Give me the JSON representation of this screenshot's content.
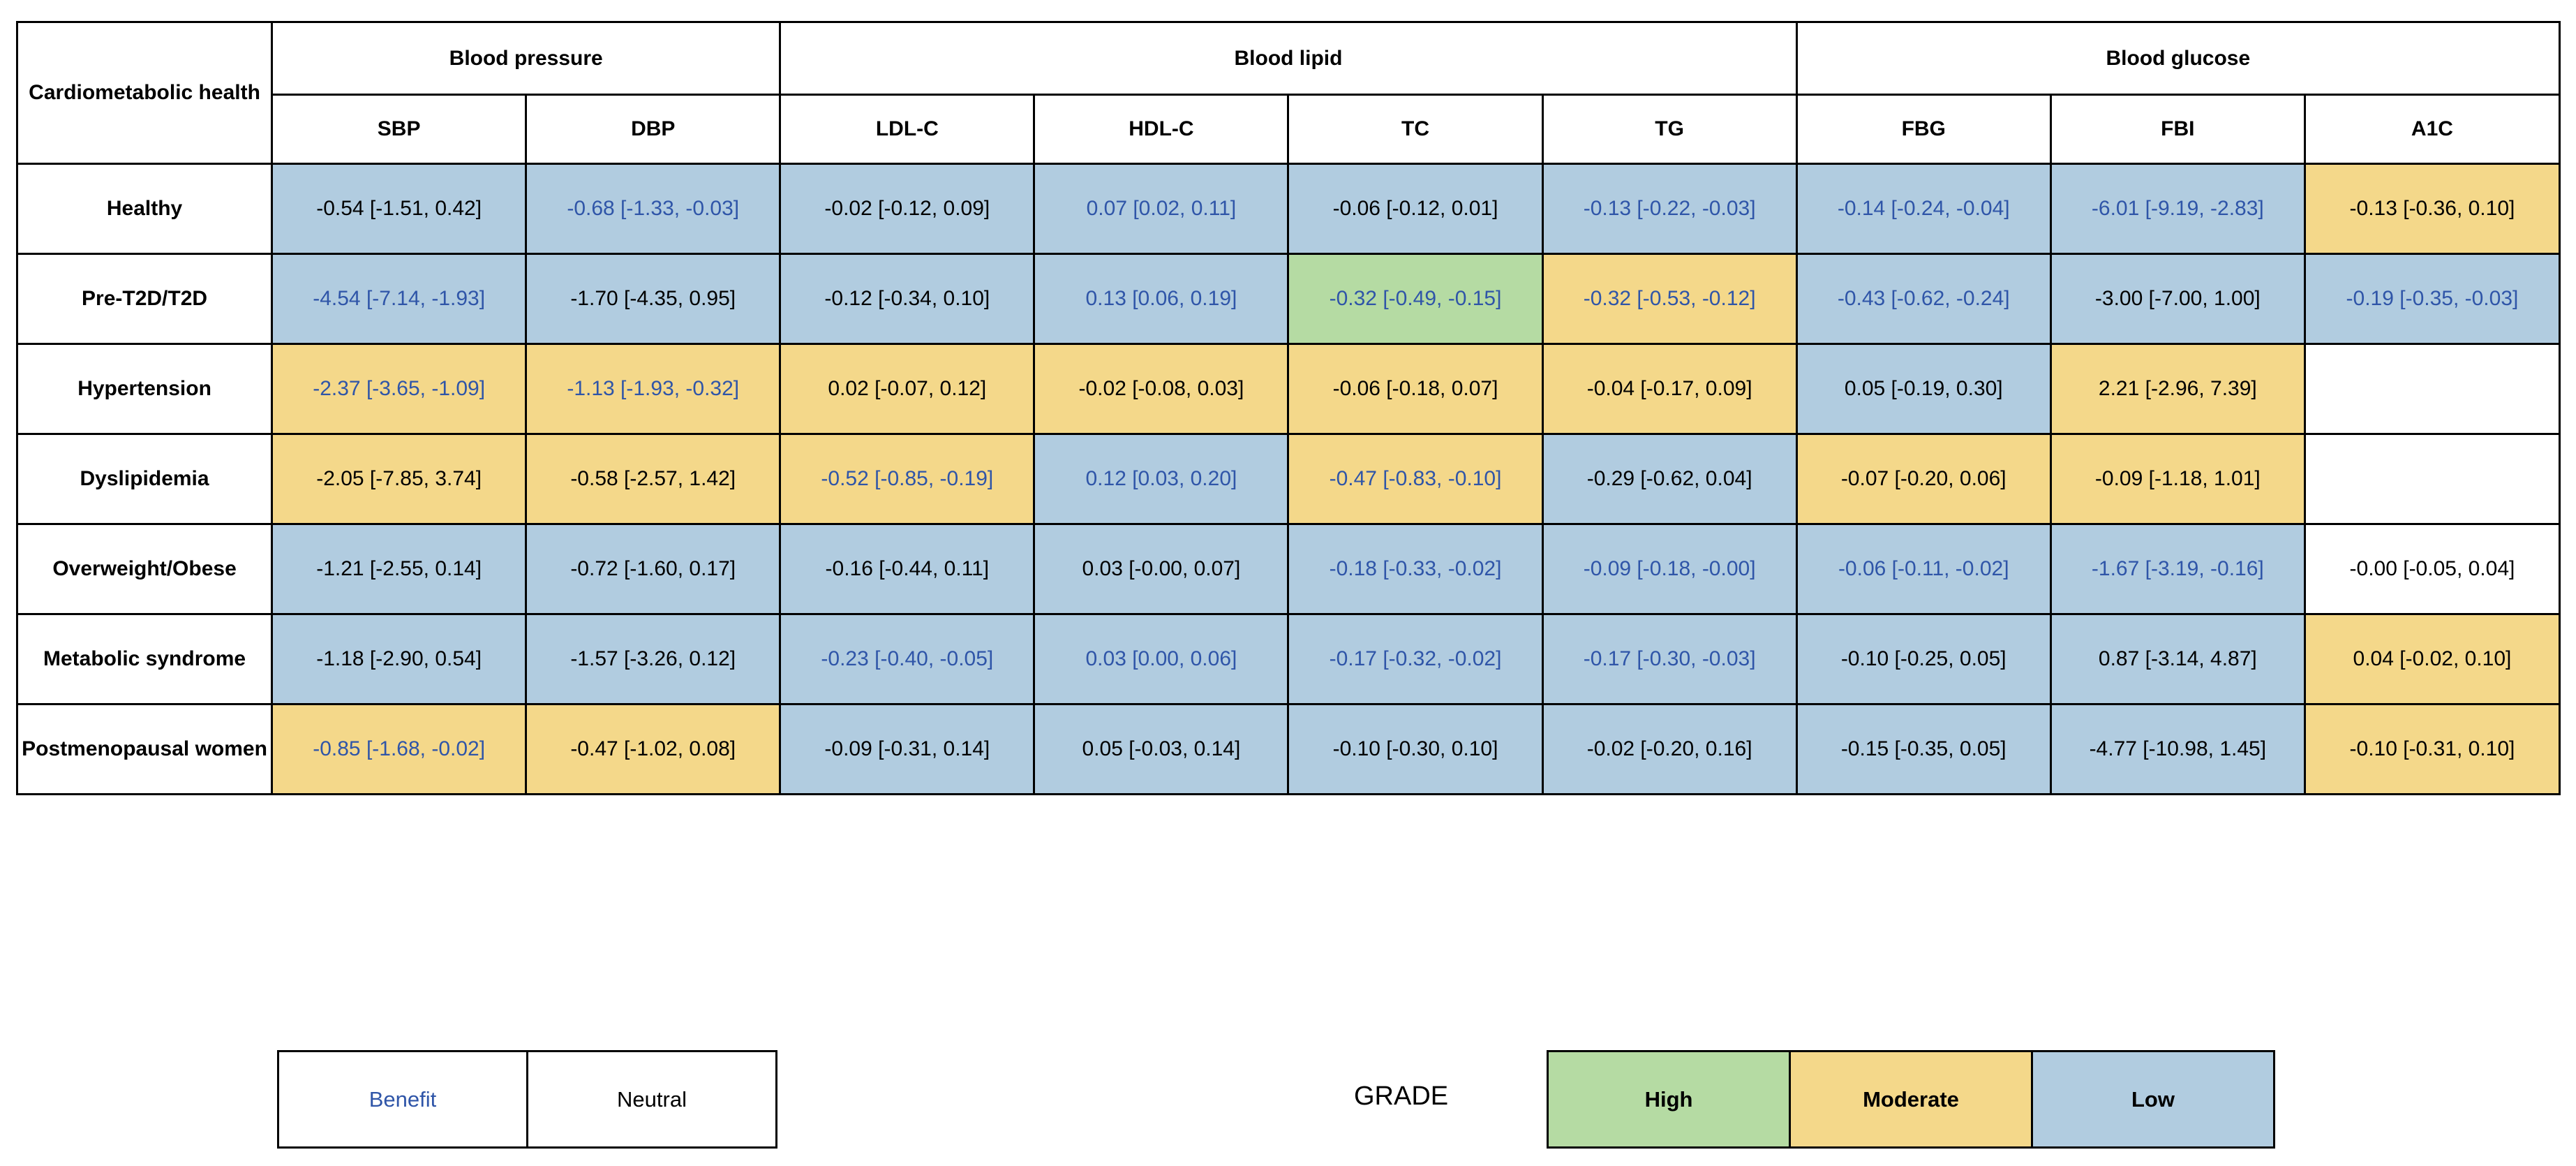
{
  "table": {
    "corner_label": "Cardiometabolic health",
    "groups": [
      {
        "label": "Blood pressure",
        "span": 2
      },
      {
        "label": "Blood lipid",
        "span": 4
      },
      {
        "label": "Blood glucose",
        "span": 3
      }
    ],
    "columns": [
      "SBP",
      "DBP",
      "LDL-C",
      "HDL-C",
      "TC",
      "TG",
      "FBG",
      "FBI",
      "A1C"
    ],
    "rows": [
      {
        "label": "Healthy",
        "cells": [
          {
            "text": "-0.54 [-1.51, 0.42]",
            "grade": "low",
            "effect": "neutral"
          },
          {
            "text": "-0.68 [-1.33, -0.03]",
            "grade": "low",
            "effect": "benefit"
          },
          {
            "text": "-0.02 [-0.12, 0.09]",
            "grade": "low",
            "effect": "neutral"
          },
          {
            "text": "0.07 [0.02, 0.11]",
            "grade": "low",
            "effect": "benefit"
          },
          {
            "text": "-0.06 [-0.12, 0.01]",
            "grade": "low",
            "effect": "neutral"
          },
          {
            "text": "-0.13 [-0.22, -0.03]",
            "grade": "low",
            "effect": "benefit"
          },
          {
            "text": "-0.14 [-0.24, -0.04]",
            "grade": "low",
            "effect": "benefit"
          },
          {
            "text": "-6.01 [-9.19, -2.83]",
            "grade": "low",
            "effect": "benefit"
          },
          {
            "text": "-0.13 [-0.36, 0.10]",
            "grade": "moderate",
            "effect": "neutral"
          }
        ]
      },
      {
        "label": "Pre-T2D/T2D",
        "cells": [
          {
            "text": "-4.54 [-7.14, -1.93]",
            "grade": "low",
            "effect": "benefit"
          },
          {
            "text": "-1.70 [-4.35, 0.95]",
            "grade": "low",
            "effect": "neutral"
          },
          {
            "text": "-0.12 [-0.34, 0.10]",
            "grade": "low",
            "effect": "neutral"
          },
          {
            "text": "0.13 [0.06, 0.19]",
            "grade": "low",
            "effect": "benefit"
          },
          {
            "text": "-0.32 [-0.49, -0.15]",
            "grade": "high",
            "effect": "benefit"
          },
          {
            "text": "-0.32 [-0.53, -0.12]",
            "grade": "moderate",
            "effect": "benefit"
          },
          {
            "text": "-0.43 [-0.62, -0.24]",
            "grade": "low",
            "effect": "benefit"
          },
          {
            "text": "-3.00 [-7.00, 1.00]",
            "grade": "low",
            "effect": "neutral"
          },
          {
            "text": "-0.19 [-0.35, -0.03]",
            "grade": "low",
            "effect": "benefit"
          }
        ]
      },
      {
        "label": "Hypertension",
        "cells": [
          {
            "text": "-2.37 [-3.65, -1.09]",
            "grade": "moderate",
            "effect": "benefit"
          },
          {
            "text": "-1.13 [-1.93, -0.32]",
            "grade": "moderate",
            "effect": "benefit"
          },
          {
            "text": "0.02 [-0.07, 0.12]",
            "grade": "moderate",
            "effect": "neutral"
          },
          {
            "text": "-0.02 [-0.08, 0.03]",
            "grade": "moderate",
            "effect": "neutral"
          },
          {
            "text": "-0.06 [-0.18, 0.07]",
            "grade": "moderate",
            "effect": "neutral"
          },
          {
            "text": "-0.04 [-0.17, 0.09]",
            "grade": "moderate",
            "effect": "neutral"
          },
          {
            "text": "0.05 [-0.19, 0.30]",
            "grade": "low",
            "effect": "neutral"
          },
          {
            "text": "2.21 [-2.96, 7.39]",
            "grade": "moderate",
            "effect": "neutral"
          },
          {
            "text": "",
            "grade": "none",
            "effect": "neutral"
          }
        ]
      },
      {
        "label": "Dyslipidemia",
        "cells": [
          {
            "text": "-2.05 [-7.85, 3.74]",
            "grade": "moderate",
            "effect": "neutral"
          },
          {
            "text": "-0.58 [-2.57, 1.42]",
            "grade": "moderate",
            "effect": "neutral"
          },
          {
            "text": "-0.52 [-0.85, -0.19]",
            "grade": "moderate",
            "effect": "benefit"
          },
          {
            "text": "0.12 [0.03, 0.20]",
            "grade": "low",
            "effect": "benefit"
          },
          {
            "text": "-0.47 [-0.83, -0.10]",
            "grade": "moderate",
            "effect": "benefit"
          },
          {
            "text": "-0.29 [-0.62, 0.04]",
            "grade": "low",
            "effect": "neutral"
          },
          {
            "text": "-0.07 [-0.20, 0.06]",
            "grade": "moderate",
            "effect": "neutral"
          },
          {
            "text": "-0.09 [-1.18, 1.01]",
            "grade": "moderate",
            "effect": "neutral"
          },
          {
            "text": "",
            "grade": "none",
            "effect": "neutral"
          }
        ]
      },
      {
        "label": "Overweight/Obese",
        "cells": [
          {
            "text": "-1.21 [-2.55, 0.14]",
            "grade": "low",
            "effect": "neutral"
          },
          {
            "text": "-0.72 [-1.60, 0.17]",
            "grade": "low",
            "effect": "neutral"
          },
          {
            "text": "-0.16 [-0.44, 0.11]",
            "grade": "low",
            "effect": "neutral"
          },
          {
            "text": "0.03 [-0.00, 0.07]",
            "grade": "low",
            "effect": "neutral"
          },
          {
            "text": "-0.18 [-0.33, -0.02]",
            "grade": "low",
            "effect": "benefit"
          },
          {
            "text": "-0.09 [-0.18, -0.00]",
            "grade": "low",
            "effect": "benefit"
          },
          {
            "text": "-0.06 [-0.11, -0.02]",
            "grade": "low",
            "effect": "benefit"
          },
          {
            "text": "-1.67 [-3.19, -0.16]",
            "grade": "low",
            "effect": "benefit"
          },
          {
            "text": "-0.00 [-0.05, 0.04]",
            "grade": "none",
            "effect": "neutral"
          }
        ]
      },
      {
        "label": "Metabolic syndrome",
        "cells": [
          {
            "text": "-1.18 [-2.90, 0.54]",
            "grade": "low",
            "effect": "neutral"
          },
          {
            "text": "-1.57 [-3.26, 0.12]",
            "grade": "low",
            "effect": "neutral"
          },
          {
            "text": "-0.23 [-0.40, -0.05]",
            "grade": "low",
            "effect": "benefit"
          },
          {
            "text": "0.03 [0.00, 0.06]",
            "grade": "low",
            "effect": "benefit"
          },
          {
            "text": "-0.17 [-0.32, -0.02]",
            "grade": "low",
            "effect": "benefit"
          },
          {
            "text": "-0.17 [-0.30, -0.03]",
            "grade": "low",
            "effect": "benefit"
          },
          {
            "text": "-0.10 [-0.25, 0.05]",
            "grade": "low",
            "effect": "neutral"
          },
          {
            "text": "0.87 [-3.14, 4.87]",
            "grade": "low",
            "effect": "neutral"
          },
          {
            "text": "0.04 [-0.02, 0.10]",
            "grade": "moderate",
            "effect": "neutral"
          }
        ]
      },
      {
        "label": "Postmenopausal women",
        "cells": [
          {
            "text": "-0.85 [-1.68, -0.02]",
            "grade": "moderate",
            "effect": "benefit"
          },
          {
            "text": "-0.47 [-1.02, 0.08]",
            "grade": "moderate",
            "effect": "neutral"
          },
          {
            "text": "-0.09 [-0.31, 0.14]",
            "grade": "low",
            "effect": "neutral"
          },
          {
            "text": "0.05 [-0.03, 0.14]",
            "grade": "low",
            "effect": "neutral"
          },
          {
            "text": "-0.10 [-0.30, 0.10]",
            "grade": "low",
            "effect": "neutral"
          },
          {
            "text": "-0.02 [-0.20, 0.16]",
            "grade": "low",
            "effect": "neutral"
          },
          {
            "text": "-0.15 [-0.35, 0.05]",
            "grade": "low",
            "effect": "neutral"
          },
          {
            "text": "-4.77 [-10.98, 1.45]",
            "grade": "low",
            "effect": "neutral"
          },
          {
            "text": "-0.10 [-0.31, 0.10]",
            "grade": "moderate",
            "effect": "neutral"
          }
        ]
      }
    ]
  },
  "legend": {
    "effect": {
      "benefit_label": "Benefit",
      "neutral_label": "Neutral"
    },
    "grade": {
      "title": "GRADE",
      "high_label": "High",
      "moderate_label": "Moderate",
      "low_label": "Low"
    }
  },
  "colors": {
    "high": "#b5dba3",
    "moderate": "#f4d88a",
    "low": "#b1cce0",
    "benefit_text": "#2f55a8",
    "neutral_text": "#000000"
  }
}
